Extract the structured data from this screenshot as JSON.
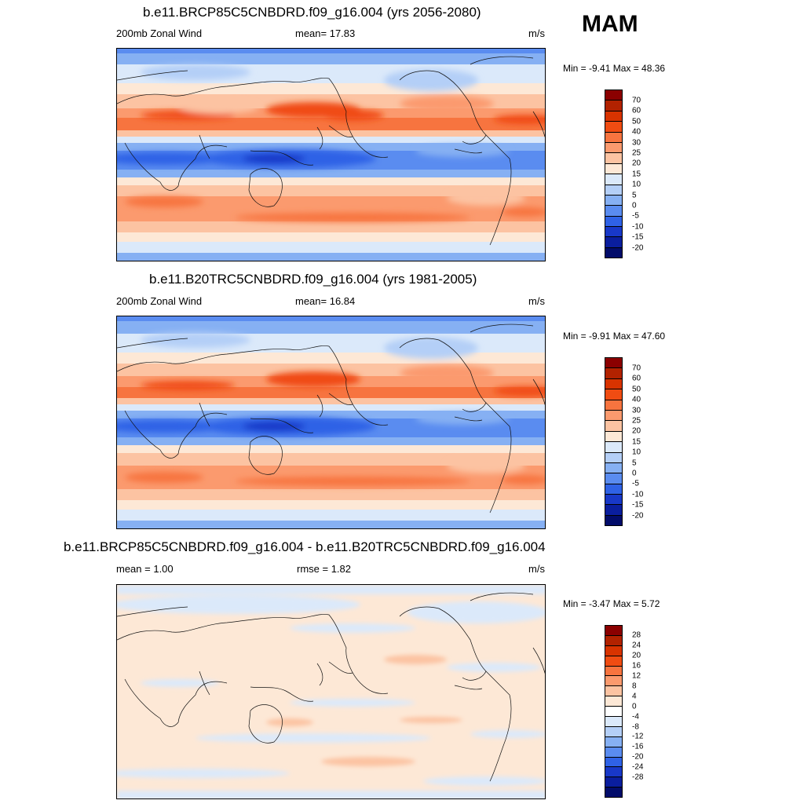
{
  "season": "MAM",
  "panels": [
    {
      "title": "b.e11.BRCP85C5CNBDRD.f09_g16.004 (yrs 2056-2080)",
      "left_label": "200mb Zonal Wind",
      "center_label": "mean=  17.83",
      "units": "m/s",
      "minmax": "Min =  -9.41 Max =  48.36"
    },
    {
      "title": "b.e11.B20TRC5CNBDRD.f09_g16.004 (yrs 1981-2005)",
      "left_label": "200mb Zonal Wind",
      "center_label": "mean=  16.84",
      "units": "m/s",
      "minmax": "Min =  -9.91 Max =  47.60"
    },
    {
      "title": "b.e11.BRCP85C5CNBDRD.f09_g16.004 - b.e11.B20TRC5CNBDRD.f09_g16.004",
      "left_label": "mean =   1.00",
      "center_label": "rmse =   1.82",
      "units": "m/s",
      "minmax": "Min =  -3.47 Max =   5.72"
    }
  ],
  "colorbar_main": {
    "labels": [
      "70",
      "60",
      "50",
      "40",
      "30",
      "25",
      "20",
      "15",
      "10",
      "5",
      "0",
      "-5",
      "-10",
      "-15",
      "-20"
    ],
    "colors": [
      "#8b0000",
      "#b22200",
      "#d83300",
      "#f04c12",
      "#f7743f",
      "#fb9a6e",
      "#fcc3a2",
      "#fde8d6",
      "#dbe9fa",
      "#b4cff7",
      "#86b0f3",
      "#5a8cf0",
      "#2f62e6",
      "#1838c8",
      "#0a1e9e",
      "#020c6a"
    ]
  },
  "colorbar_diff": {
    "labels": [
      "28",
      "24",
      "20",
      "16",
      "12",
      "8",
      "4",
      "0",
      "-4",
      "-8",
      "-12",
      "-16",
      "-20",
      "-24",
      "-28"
    ],
    "colors": [
      "#8b0000",
      "#b22200",
      "#d83300",
      "#f04c12",
      "#f7743f",
      "#fb9a6e",
      "#fcc3a2",
      "#fde8d6",
      "#ffffff",
      "#dbe9fa",
      "#b4cff7",
      "#86b0f3",
      "#5a8cf0",
      "#2f62e6",
      "#1838c8",
      "#0a1e9e",
      "#020c6a"
    ]
  }
}
